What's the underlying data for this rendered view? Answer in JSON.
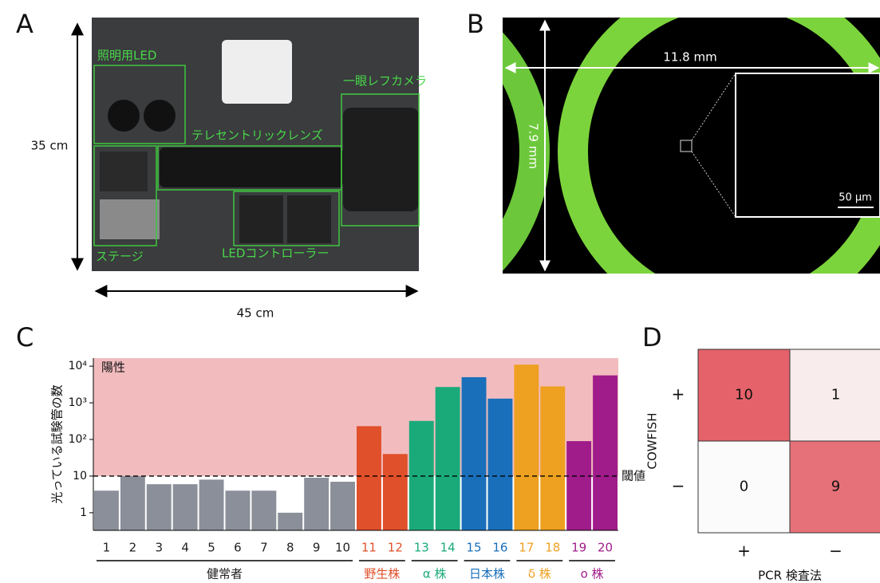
{
  "panels": {
    "A": {
      "label": "A",
      "height_label": "35 cm",
      "width_label": "45 cm",
      "parts": [
        "照明用LED",
        "一眼レフカメラ",
        "テレセントリックレンズ",
        "ステージ",
        "LEDコントローラー"
      ]
    },
    "B": {
      "label": "B",
      "width_label": "11.8 mm",
      "height_label": "7.9 mm",
      "scale_label": "50 µm"
    }
  },
  "chart_data": [
    {
      "type": "bar",
      "panel": "C",
      "y_label": "光っている試験管の数",
      "log_scale": true,
      "ylim": [
        0.33,
        16600
      ],
      "yticks": [
        1,
        10,
        {
          "value": 100,
          "label": "10²"
        },
        {
          "value": 1000,
          "label": "10³"
        },
        {
          "value": 10000,
          "label": "10⁴"
        }
      ],
      "threshold": 10,
      "threshold_label": "閾値",
      "region_label": "陽性",
      "region_color": "#f2bcbf",
      "series": [
        {
          "name": "健常者",
          "color": "#8a8f99",
          "text_color": "#222222",
          "categories": [
            "1",
            "2",
            "3",
            "4",
            "5",
            "6",
            "7",
            "8",
            "9",
            "10"
          ],
          "values": [
            4,
            10,
            6,
            6,
            8,
            4,
            4,
            1,
            9,
            7
          ]
        },
        {
          "name": "野生株",
          "color": "#e0502a",
          "text_color": "#e0502a",
          "categories": [
            "11",
            "12"
          ],
          "values": [
            230,
            40
          ]
        },
        {
          "name": "α 株",
          "color": "#1aaa7a",
          "text_color": "#1aaa7a",
          "categories": [
            "13",
            "14"
          ],
          "values": [
            320,
            2700
          ]
        },
        {
          "name": "日本株",
          "color": "#1a6fba",
          "text_color": "#1a6fba",
          "categories": [
            "15",
            "16"
          ],
          "values": [
            5000,
            1300
          ]
        },
        {
          "name": "δ 株",
          "color": "#eea020",
          "text_color": "#eea020",
          "categories": [
            "17",
            "18"
          ],
          "values": [
            11000,
            2800
          ]
        },
        {
          "name": "ο 株",
          "color": "#a01c8a",
          "text_color": "#a01c8a",
          "categories": [
            "19",
            "20"
          ],
          "values": [
            90,
            5600
          ]
        }
      ]
    },
    {
      "type": "heatmap",
      "panel": "D",
      "y_label": "COWFISH",
      "x_label": "PCR 検査法",
      "rows": [
        "+",
        "−"
      ],
      "columns": [
        "+",
        "−"
      ],
      "values": [
        [
          10,
          1
        ],
        [
          0,
          9
        ]
      ],
      "vlim": [
        0,
        10
      ],
      "cmap": [
        "#fbfbfb",
        "#e5626a"
      ]
    }
  ]
}
